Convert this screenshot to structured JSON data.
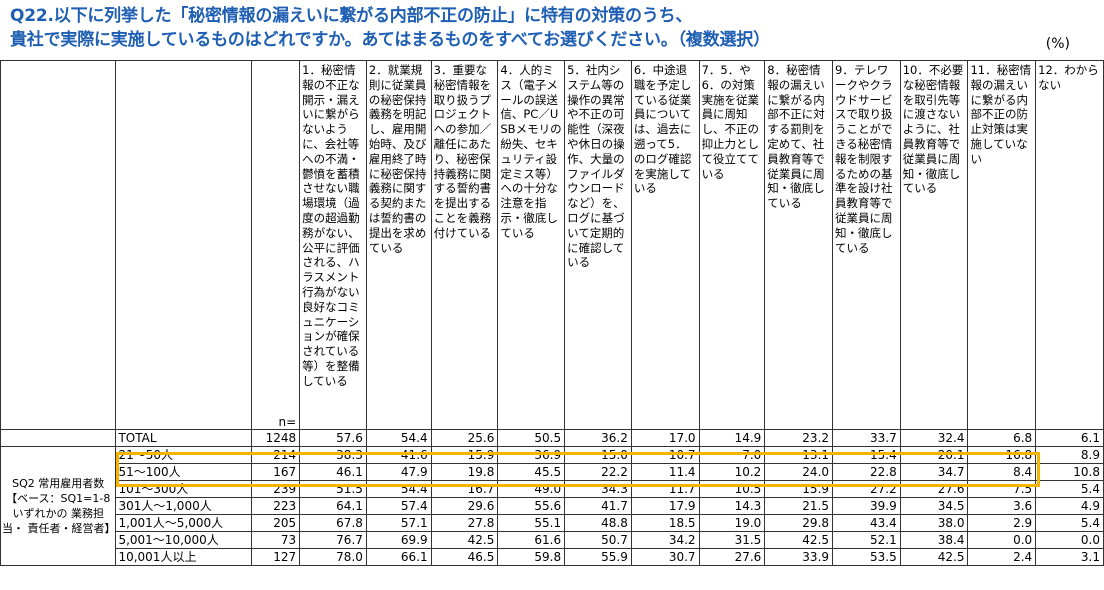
{
  "title": {
    "line1": "Q22.以下に列挙した「秘密情報の漏えいに繋がる内部不正の防止」に特有の対策のうち、",
    "line2": "貴社で実際に実施しているものはどれですか。あてはまるものをすべてお選びください。（複数選択）"
  },
  "unit": "(%)",
  "n_label": "n=",
  "group_label": "SQ2 常用雇用者数 【ベース：SQ1=1-8 いずれかの 業務担当・ 責任者・経営者】",
  "colors": {
    "title": "#1f5fb3",
    "highlight": "#f5b400"
  },
  "chart_data": {
    "type": "table",
    "columns": [
      "1．秘密情報の不正な開示・漏えいに繋がらないように、会社等への不満・鬱憤を蓄積させない職場環境（過度の超過勤務がない、公平に評価される、ハラスメント行為がない良好なコミュニケーションが確保されている等）を整備している",
      "2．就業規則に従業員の秘密保持義務を明記し、雇用開始時、及び雇用終了時に秘密保持義務に関する契約または誓約書の提出を求めている",
      "3．重要な秘密情報を取り扱うプロジェクトへの参加／離任にあたり、秘密保持義務に関する誓約書を提出することを義務付けている",
      "4．人的ミス（電子メールの誤送信、PC／USBメモリの紛失、セキュリティ設定ミス等）への十分な注意を指示・徹底している",
      "5．社内システム等の操作の異常や不正の可能性（深夜や休日の操作、大量のファイルダウンロードなど）を、ログに基づいて定期的に確認している",
      "6．中途退職を予定している従業員については、過去に遡って5．のログ確認を実施している",
      "7．5．や6．の対策実施を従業員に周知し、不正の抑止力として役立てている",
      "8．秘密情報の漏えいに繋がる内部不正に対する罰則を定めて、社員教育等で従業員に周知・徹底している",
      "9．テレワークやクラウドサービスで取り扱うことができる秘密情報を制限するための基準を設け社員教育等で従業員に周知・徹底している",
      "10．不必要な秘密情報を取引先等に渡さないように、社員教育等で従業員に周知・徹底している",
      "11．秘密情報の漏えいに繋がる内部不正の防止対策は実施していない",
      "12．わからない"
    ],
    "rows": [
      {
        "label": "TOTAL",
        "n": "1248",
        "values": [
          "57.6",
          "54.4",
          "25.6",
          "50.5",
          "36.2",
          "17.0",
          "14.9",
          "23.2",
          "33.7",
          "32.4",
          "6.8",
          "6.1"
        ]
      },
      {
        "label": "21～50人",
        "n": "214",
        "values": [
          "38.3",
          "41.6",
          "15.9",
          "36.9",
          "15.0",
          "10.7",
          "7.0",
          "13.1",
          "15.4",
          "20.1",
          "16.8",
          "8.9"
        ]
      },
      {
        "label": "51～100人",
        "n": "167",
        "values": [
          "46.1",
          "47.9",
          "19.8",
          "45.5",
          "22.2",
          "11.4",
          "10.2",
          "24.0",
          "22.8",
          "34.7",
          "8.4",
          "10.8"
        ]
      },
      {
        "label": "101～300人",
        "n": "239",
        "values": [
          "51.5",
          "54.4",
          "16.7",
          "49.0",
          "34.3",
          "11.7",
          "10.5",
          "15.9",
          "27.2",
          "27.6",
          "7.5",
          "5.4"
        ]
      },
      {
        "label": "301人～1,000人",
        "n": "223",
        "values": [
          "64.1",
          "57.4",
          "29.6",
          "55.6",
          "41.7",
          "17.9",
          "14.3",
          "21.5",
          "39.9",
          "34.5",
          "3.6",
          "4.9"
        ]
      },
      {
        "label": "1,001人～5,000人",
        "n": "205",
        "values": [
          "67.8",
          "57.1",
          "27.8",
          "55.1",
          "48.8",
          "18.5",
          "19.0",
          "29.8",
          "43.4",
          "38.0",
          "2.9",
          "5.4"
        ]
      },
      {
        "label": "5,001～10,000人",
        "n": "73",
        "values": [
          "76.7",
          "69.9",
          "42.5",
          "61.6",
          "50.7",
          "34.2",
          "31.5",
          "42.5",
          "52.1",
          "38.4",
          "0.0",
          "0.0"
        ]
      },
      {
        "label": "10,001人以上",
        "n": "127",
        "values": [
          "78.0",
          "66.1",
          "46.5",
          "59.8",
          "55.9",
          "30.7",
          "27.6",
          "33.9",
          "53.5",
          "42.5",
          "2.4",
          "3.1"
        ]
      }
    ]
  }
}
